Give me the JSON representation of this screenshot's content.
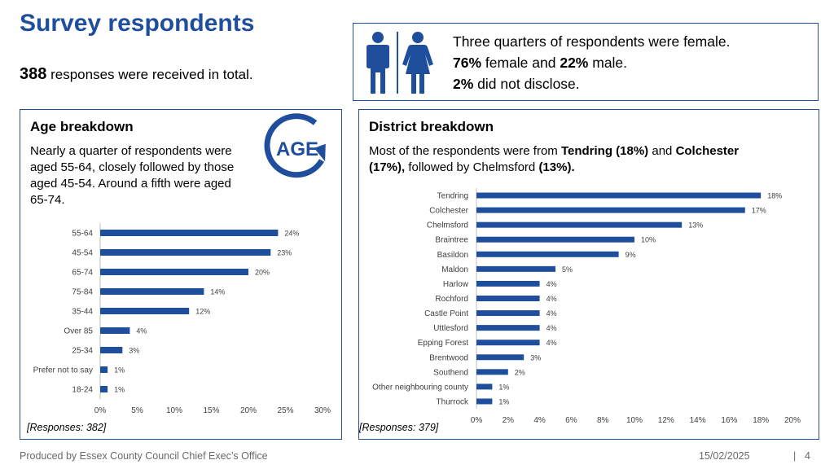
{
  "header": {
    "title": "Survey respondents",
    "total_count": "388",
    "total_text": " responses were received in total."
  },
  "gender": {
    "line1": "Three quarters of respondents were female.",
    "female_pct": "76%",
    "line2_mid": " female and ",
    "male_pct": "22%",
    "line2_end": " male.",
    "undisclosed_pct": "2%",
    "line3_end": " did not disclose."
  },
  "age_panel": {
    "title": "Age breakdown",
    "text": "Nearly a quarter of respondents were aged 55-64, closely followed by those aged 45-54. Around a fifth were aged 65-74.",
    "logo_text": "AGE",
    "responses": "[Responses: 382]"
  },
  "district_panel": {
    "title": "District breakdown",
    "text_a": "Most of the respondents were from ",
    "text_b": "Tendring (18%)",
    "text_c": " and ",
    "text_d": "Colchester",
    "text_e": "(17%),",
    "text_f": " followed by Chelmsford ",
    "text_g": "(13%).",
    "responses": "[Responses: 379]"
  },
  "footer": {
    "left": "Produced by Essex County Council Chief Exec’s Office",
    "date": "15/02/2025",
    "separator": "|",
    "page": "4"
  },
  "colors": {
    "accent": "#1f4e9c",
    "bar": "#1f4e9c"
  },
  "chart_data": [
    {
      "type": "bar",
      "orientation": "horizontal",
      "title": "Age breakdown",
      "categories": [
        "55-64",
        "45-54",
        "65-74",
        "75-84",
        "35-44",
        "Over 85",
        "25-34",
        "Prefer not to say",
        "18-24"
      ],
      "values": [
        24,
        23,
        20,
        14,
        12,
        4,
        3,
        1,
        1
      ],
      "labels": [
        "24%",
        "23%",
        "20%",
        "14%",
        "12%",
        "4%",
        "3%",
        "1%",
        "1%"
      ],
      "xlim": [
        0,
        30
      ],
      "ticks": [
        "0%",
        "5%",
        "10%",
        "15%",
        "20%",
        "25%",
        "30%"
      ]
    },
    {
      "type": "bar",
      "orientation": "horizontal",
      "title": "District breakdown",
      "categories": [
        "Tendring",
        "Colchester",
        "Chelmsford",
        "Braintree",
        "Basildon",
        "Maldon",
        "Harlow",
        "Rochford",
        "Castle Point",
        "Uttlesford",
        "Epping Forest",
        "Brentwood",
        "Southend",
        "Other neighbouring county",
        "Thurrock"
      ],
      "values": [
        18,
        17,
        13,
        10,
        9,
        5,
        4,
        4,
        4,
        4,
        4,
        3,
        2,
        1,
        1
      ],
      "labels": [
        "18%",
        "17%",
        "13%",
        "10%",
        "9%",
        "5%",
        "4%",
        "4%",
        "4%",
        "4%",
        "4%",
        "3%",
        "2%",
        "1%",
        "1%"
      ],
      "xlim": [
        0,
        20
      ],
      "ticks": [
        "0%",
        "2%",
        "4%",
        "6%",
        "8%",
        "10%",
        "12%",
        "14%",
        "16%",
        "18%",
        "20%"
      ]
    }
  ]
}
